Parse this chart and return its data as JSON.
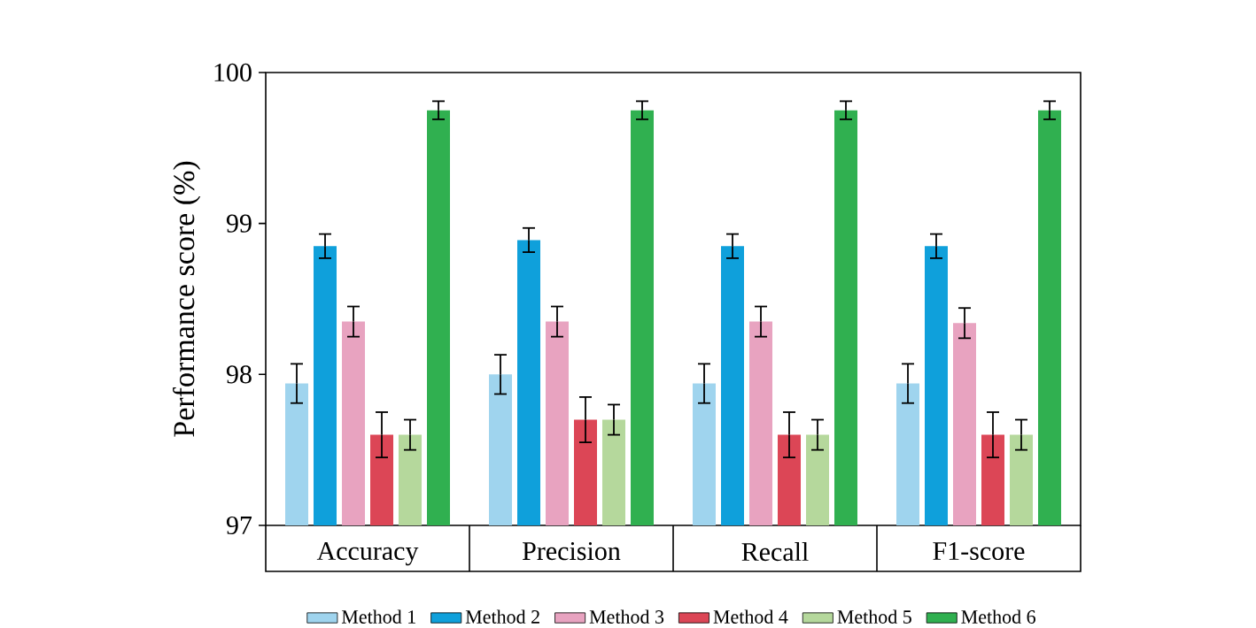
{
  "chart_data": {
    "type": "bar",
    "ylabel": "Performance score (%)",
    "categories": [
      "Accuracy",
      "Precision",
      "Recall",
      "F1-score"
    ],
    "series": [
      {
        "name": "Method 1",
        "color": "#9fd4ee",
        "values": [
          97.94,
          98.0,
          97.94,
          97.94
        ],
        "errors": [
          0.13,
          0.13,
          0.13,
          0.13
        ]
      },
      {
        "name": "Method 2",
        "color": "#0fa0db",
        "values": [
          98.85,
          98.89,
          98.85,
          98.85
        ],
        "errors": [
          0.08,
          0.08,
          0.08,
          0.08
        ]
      },
      {
        "name": "Method 3",
        "color": "#e8a3c0",
        "values": [
          98.35,
          98.35,
          98.35,
          98.34
        ],
        "errors": [
          0.1,
          0.1,
          0.1,
          0.1
        ]
      },
      {
        "name": "Method 4",
        "color": "#dc4656",
        "values": [
          97.6,
          97.7,
          97.6,
          97.6
        ],
        "errors": [
          0.15,
          0.15,
          0.15,
          0.15
        ]
      },
      {
        "name": "Method 5",
        "color": "#b5d89c",
        "values": [
          97.6,
          97.7,
          97.6,
          97.6
        ],
        "errors": [
          0.1,
          0.1,
          0.1,
          0.1
        ]
      },
      {
        "name": "Method 6",
        "color": "#30b050",
        "values": [
          99.75,
          99.75,
          99.75,
          99.75
        ],
        "errors": [
          0.06,
          0.06,
          0.06,
          0.06
        ]
      }
    ],
    "ylim": [
      97,
      100
    ],
    "yticks": [
      97,
      98,
      99,
      100
    ],
    "grid": false,
    "legend": "bottom"
  }
}
